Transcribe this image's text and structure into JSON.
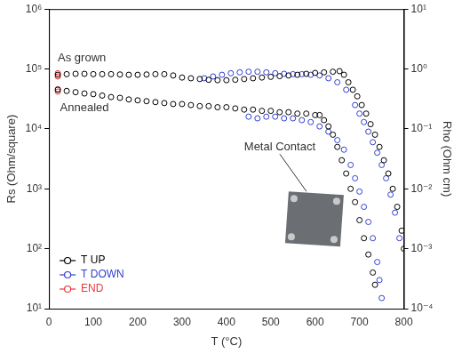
{
  "chart_data": {
    "type": "scatter",
    "x_label": "T (°C)",
    "y_label": "Rs (Ohm/square)",
    "y2_label": "Rho (Ohm cm)",
    "log": "y",
    "grid": false,
    "legend": "lower left",
    "xlim": [
      0,
      800
    ],
    "xticks": [
      0,
      100,
      200,
      300,
      400,
      500,
      600,
      700,
      800
    ],
    "ylim": [
      10,
      1000000
    ],
    "yticks": [
      {
        "value": 10,
        "label": "10¹"
      },
      {
        "value": 100,
        "label": "10²"
      },
      {
        "value": 1000,
        "label": "10³"
      },
      {
        "value": 10000,
        "label": "10⁴"
      },
      {
        "value": 100000,
        "label": "10⁵"
      },
      {
        "value": 1000000,
        "label": "10⁶"
      }
    ],
    "y2lim": [
      0.0001,
      10
    ],
    "y2ticks": [
      {
        "value": 0.0001,
        "label": "10⁻⁴"
      },
      {
        "value": 0.001,
        "label": "10⁻³"
      },
      {
        "value": 0.01,
        "label": "10⁻²"
      },
      {
        "value": 0.1,
        "label": "10⁻¹"
      },
      {
        "value": 1,
        "label": "10⁰"
      },
      {
        "value": 10,
        "label": "10¹"
      }
    ],
    "annotations": [
      {
        "text": "As grown",
        "x": 20,
        "y": 150000
      },
      {
        "text": "Annealed",
        "x": 25,
        "y": 22000
      },
      {
        "text": "Metal Contact",
        "x": 440,
        "y": 5000
      }
    ],
    "series": [
      {
        "name": "T UP",
        "color": "#000000",
        "marker": "circle-open",
        "x": [
          20,
          40,
          60,
          80,
          100,
          120,
          140,
          160,
          180,
          200,
          220,
          240,
          260,
          280,
          300,
          320,
          340,
          360,
          380,
          400,
          420,
          440,
          460,
          480,
          500,
          520,
          540,
          560,
          580,
          600,
          620,
          640,
          655,
          665,
          675,
          685,
          695,
          705,
          715,
          725,
          735,
          745,
          755,
          765,
          775,
          785,
          795,
          800,
          20,
          40,
          60,
          80,
          100,
          120,
          140,
          160,
          180,
          200,
          220,
          240,
          260,
          280,
          300,
          320,
          340,
          360,
          380,
          400,
          420,
          440,
          460,
          480,
          500,
          520,
          540,
          560,
          580,
          600,
          610,
          620,
          630,
          640,
          650,
          660,
          670,
          680,
          690,
          700,
          710,
          720,
          730,
          735
        ],
        "values": [
          80000,
          82000,
          83000,
          83000,
          82000,
          82000,
          82000,
          81000,
          80000,
          80000,
          81000,
          82000,
          82000,
          78000,
          72000,
          70000,
          68000,
          66000,
          65000,
          65000,
          66000,
          68000,
          70000,
          72000,
          74000,
          76000,
          78000,
          80000,
          83000,
          86000,
          88000,
          90000,
          92000,
          80000,
          60000,
          45000,
          35000,
          25000,
          18000,
          12000,
          8000,
          5000,
          3000,
          1800,
          1000,
          500,
          200,
          100,
          45000,
          43000,
          41000,
          39000,
          38000,
          36000,
          34000,
          33000,
          31000,
          30000,
          29000,
          28000,
          27000,
          26000,
          26000,
          25000,
          24000,
          24000,
          23000,
          23000,
          22000,
          21000,
          21000,
          20000,
          20000,
          19000,
          19000,
          18000,
          18000,
          17000,
          17000,
          14000,
          11000,
          8000,
          5000,
          3000,
          1800,
          1000,
          600,
          300,
          150,
          80,
          40,
          25
        ]
      },
      {
        "name": "T DOWN",
        "color": "#2f3fd0",
        "marker": "circle-open",
        "x": [
          350,
          370,
          390,
          410,
          430,
          450,
          470,
          490,
          510,
          530,
          550,
          570,
          590,
          610,
          630,
          650,
          670,
          690,
          700,
          710,
          720,
          730,
          740,
          750,
          760,
          770,
          780,
          790,
          450,
          470,
          490,
          510,
          530,
          550,
          570,
          590,
          610,
          630,
          650,
          665,
          680,
          690,
          700,
          710,
          720,
          730,
          740,
          745,
          750
        ],
        "values": [
          70000,
          75000,
          80000,
          85000,
          88000,
          90000,
          90000,
          88000,
          85000,
          83000,
          82000,
          82000,
          80000,
          78000,
          70000,
          60000,
          45000,
          25000,
          18000,
          13000,
          9000,
          6000,
          4000,
          2500,
          1500,
          800,
          400,
          150,
          16000,
          15000,
          16000,
          16000,
          15000,
          15000,
          14000,
          13000,
          11000,
          9000,
          6500,
          4500,
          2500,
          1500,
          900,
          500,
          280,
          150,
          60,
          30,
          15
        ]
      },
      {
        "name": "END",
        "color": "#e8383b",
        "marker": "circle-open",
        "x": [
          20,
          20,
          20,
          20
        ],
        "values": [
          75000,
          85000,
          42000,
          46000
        ]
      }
    ]
  }
}
